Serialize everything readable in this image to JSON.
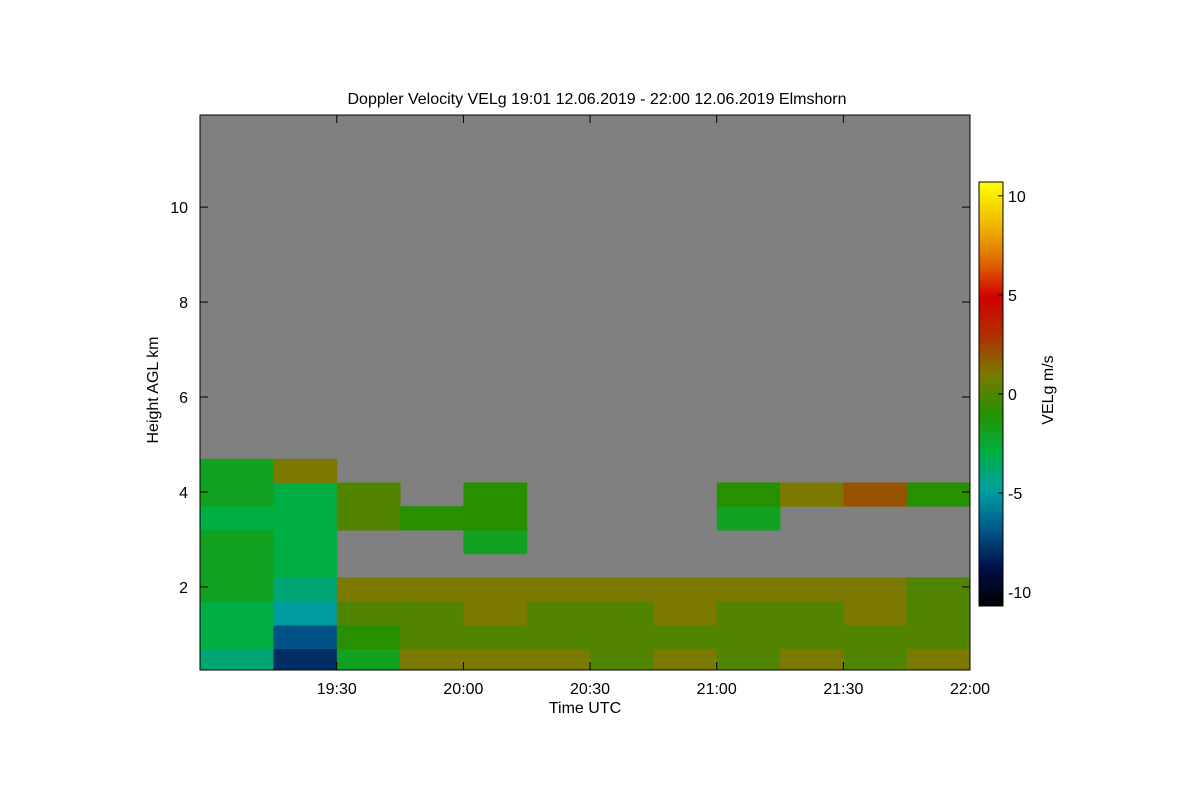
{
  "chart_data": {
    "type": "heatmap",
    "title": "Doppler Velocity VELg   19:01 12.06.2019 - 22:00 12.06.2019 Elmshorn",
    "x_label": "Time UTC",
    "y_label": "Height AGL km",
    "colorbar_label": "VELg m/s",
    "xlim": [
      18.96,
      22.0
    ],
    "xticks": [
      {
        "value": 19.5,
        "label": "19:30"
      },
      {
        "value": 20,
        "label": "20:00"
      },
      {
        "value": 20.5,
        "label": "20:30"
      },
      {
        "value": 21,
        "label": "21:00"
      },
      {
        "value": 21.5,
        "label": "21:30"
      },
      {
        "value": 22,
        "label": "22:00"
      }
    ],
    "ylim": [
      0.25,
      11.94
    ],
    "yticks": [
      2,
      4,
      6,
      8,
      10
    ],
    "zlim": [
      -10.7,
      10.7
    ],
    "zticks": [
      -10,
      -5,
      0,
      5,
      10
    ],
    "x_bins": [
      18.96,
      19.25,
      19.5,
      19.75,
      20,
      20.25,
      20.5,
      20.75,
      21,
      21.25,
      21.5,
      21.75,
      22.0
    ],
    "y_bins": [
      0.25,
      0.7,
      1.2,
      1.7,
      2.2,
      2.7,
      3.2,
      3.7,
      4.2,
      4.7
    ],
    "values": [
      [
        -4,
        -8,
        -2,
        1,
        1,
        1,
        0,
        1,
        0,
        1,
        0,
        1
      ],
      [
        -3,
        -7,
        -1,
        0,
        0,
        0,
        0,
        0,
        0,
        0,
        0,
        0
      ],
      [
        -3,
        -5,
        0,
        0,
        1,
        0,
        0,
        1,
        0,
        0,
        1,
        0
      ],
      [
        -2,
        -4,
        1,
        1,
        1,
        1,
        1,
        1,
        1,
        1,
        1,
        0
      ],
      [
        -2,
        -3,
        null,
        null,
        null,
        null,
        null,
        null,
        null,
        null,
        null,
        null
      ],
      [
        -2,
        -3,
        null,
        null,
        -2,
        null,
        null,
        null,
        null,
        null,
        null,
        null
      ],
      [
        -3,
        -3,
        0,
        -1,
        -1,
        null,
        null,
        null,
        -2,
        null,
        null,
        null
      ],
      [
        -2,
        -3,
        0,
        null,
        -1,
        null,
        null,
        null,
        -1,
        1,
        2,
        -1
      ],
      [
        -2,
        1,
        null,
        null,
        null,
        null,
        null,
        null,
        null,
        null,
        null,
        null
      ]
    ],
    "colorscale": [
      "#000000",
      "#00104a",
      "#005a8a",
      "#00a0a0",
      "#00b040",
      "#289000",
      "#7a7a00",
      "#b03000",
      "#d00000",
      "#e07000",
      "#f0c000",
      "#ffff00"
    ],
    "missing_color": "#808080"
  }
}
